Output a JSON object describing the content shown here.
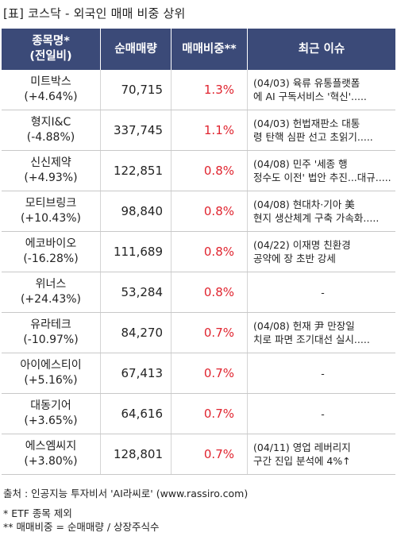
{
  "title": "[표] 코스닥 - 외국인 매매 비중 상위",
  "table": {
    "headers": {
      "name_line1": "종목명*",
      "name_line2": "(전일비)",
      "net": "순매매량",
      "ratio": "매매비중**",
      "issue": "최근 이슈"
    },
    "rows": [
      {
        "name": "미트박스",
        "change": "(+4.64%)",
        "net": "70,715",
        "ratio": "1.3%",
        "issue1": "(04/03) 육류 유통플랫폼",
        "issue2": "에 AI 구독서비스 '혁신'....."
      },
      {
        "name": "형지I&C",
        "change": "(-4.88%)",
        "net": "337,745",
        "ratio": "1.1%",
        "issue1": "(04/03) 헌법재판소 대통",
        "issue2": "령 탄핵 심판 선고 초읽기....."
      },
      {
        "name": "신신제약",
        "change": "(+4.93%)",
        "net": "122,851",
        "ratio": "0.8%",
        "issue1": "(04/08) 민주 '세종 행",
        "issue2": "정수도 이전' 법안 추진...대규....."
      },
      {
        "name": "모티브링크",
        "change": "(+10.43%)",
        "net": "98,840",
        "ratio": "0.8%",
        "issue1": "(04/08) 현대차·기아 美",
        "issue2": "현지 생산체계 구축 가속화....."
      },
      {
        "name": "에코바이오",
        "change": "(-16.28%)",
        "net": "111,689",
        "ratio": "0.8%",
        "issue1": "(04/22) 이재명 친환경",
        "issue2": "공약에 장 초반 강세"
      },
      {
        "name": "위너스",
        "change": "(+24.43%)",
        "net": "53,284",
        "ratio": "0.8%",
        "issue1": "-",
        "issue2": ""
      },
      {
        "name": "유라테크",
        "change": "(-10.97%)",
        "net": "84,270",
        "ratio": "0.7%",
        "issue1": "(04/08) 헌재 尹 만장일",
        "issue2": "치로 파면 조기대선 실시....."
      },
      {
        "name": "아이에스티이",
        "change": "(+5.16%)",
        "net": "67,413",
        "ratio": "0.7%",
        "issue1": "-",
        "issue2": ""
      },
      {
        "name": "대동기어",
        "change": "(+3.65%)",
        "net": "64,616",
        "ratio": "0.7%",
        "issue1": "-",
        "issue2": ""
      },
      {
        "name": "에스엠씨지",
        "change": "(+3.80%)",
        "net": "128,801",
        "ratio": "0.7%",
        "issue1": "(04/11) 영업 레버리지",
        "issue2": "구간 진입 분석에 4%↑"
      }
    ]
  },
  "footer": {
    "source": "출처 : 인공지능 투자비서 'AI라씨로' (www.rassiro.com)",
    "note1": "* ETF 종목 제외",
    "note2": "** 매매비중 = 순매매량 / 상장주식수"
  },
  "colors": {
    "header_bg": "#3b4a78",
    "ratio_red": "#e0242f"
  }
}
